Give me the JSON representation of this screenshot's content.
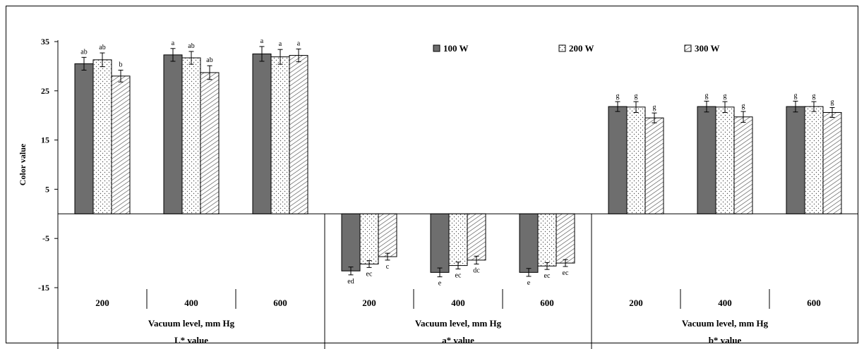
{
  "chart_data": {
    "type": "bar",
    "ylabel": "Color value",
    "ylim": [
      -15,
      35
    ],
    "yticks": [
      35,
      25,
      15,
      5,
      -5,
      -15
    ],
    "grid": false,
    "legend_position": "top-right",
    "groups": [
      {
        "label": "L* value",
        "xlabel": "Vacuum level, mm Hg",
        "categories": [
          "200",
          "400",
          "600"
        ],
        "series": [
          {
            "name": "100 W",
            "values": [
              30.5,
              32.3,
              32.5
            ],
            "errors": [
              1.3,
              1.3,
              1.5
            ],
            "letters": [
              "ab",
              "a",
              "a"
            ]
          },
          {
            "name": "200 W",
            "values": [
              31.3,
              31.7,
              31.9
            ],
            "errors": [
              1.4,
              1.3,
              1.5
            ],
            "letters": [
              "ab",
              "ab",
              "a"
            ]
          },
          {
            "name": "300 W",
            "values": [
              28.0,
              28.7,
              32.2
            ],
            "errors": [
              1.2,
              1.4,
              1.3
            ],
            "letters": [
              "b",
              "ab",
              "a"
            ]
          }
        ]
      },
      {
        "label": "a* value",
        "xlabel": "Vacuum level, mm Hg",
        "categories": [
          "200",
          "400",
          "600"
        ],
        "series": [
          {
            "name": "100 W",
            "values": [
              -11.6,
              -11.9,
              -11.9
            ],
            "errors": [
              0.8,
              0.9,
              0.8
            ],
            "letters": [
              "ed",
              "e",
              "e"
            ]
          },
          {
            "name": "200 W",
            "values": [
              -10.2,
              -10.5,
              -10.6
            ],
            "errors": [
              0.7,
              0.7,
              0.7
            ],
            "letters": [
              "ec",
              "ec",
              "ec"
            ]
          },
          {
            "name": "300 W",
            "values": [
              -8.7,
              -9.4,
              -10.0
            ],
            "errors": [
              0.7,
              0.8,
              0.7
            ],
            "letters": [
              "c",
              "dc",
              "ec"
            ]
          }
        ]
      },
      {
        "label": "b* value",
        "xlabel": "Vacuum level, mm Hg",
        "categories": [
          "200",
          "400",
          "600"
        ],
        "series": [
          {
            "name": "100 W",
            "values": [
              21.8,
              21.8,
              21.8
            ],
            "errors": [
              1.0,
              1.1,
              1.1
            ],
            "letters": [
              "g",
              "g",
              "g"
            ]
          },
          {
            "name": "200 W",
            "values": [
              21.7,
              21.7,
              21.8
            ],
            "errors": [
              1.1,
              1.1,
              1.0
            ],
            "letters": [
              "g",
              "g",
              "g"
            ]
          },
          {
            "name": "300 W",
            "values": [
              19.5,
              19.7,
              20.6
            ],
            "errors": [
              1.0,
              1.1,
              1.0
            ],
            "letters": [
              "g",
              "g",
              "g"
            ]
          }
        ]
      }
    ],
    "legend": [
      "100 W",
      "200 W",
      "300 W"
    ]
  }
}
